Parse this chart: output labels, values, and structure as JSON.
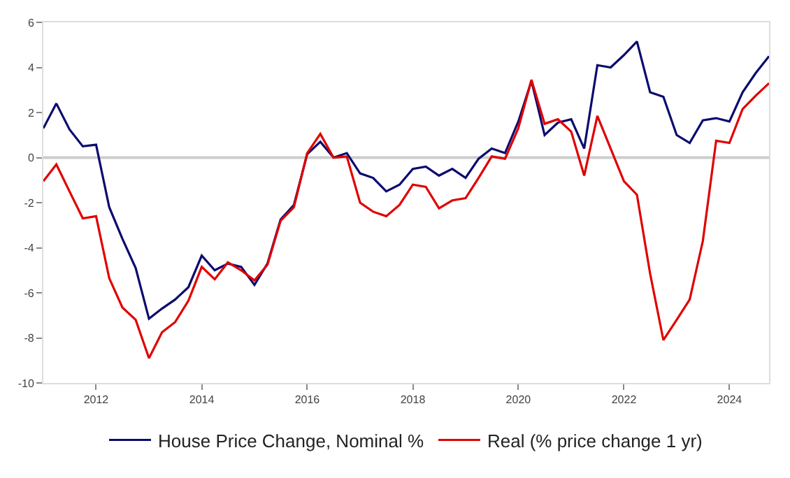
{
  "chart_data": {
    "type": "line",
    "x": [
      "2011-01",
      "2011-04",
      "2011-07",
      "2011-10",
      "2012-01",
      "2012-04",
      "2012-07",
      "2012-10",
      "2013-01",
      "2013-04",
      "2013-07",
      "2013-10",
      "2014-01",
      "2014-04",
      "2014-07",
      "2014-10",
      "2015-01",
      "2015-04",
      "2015-07",
      "2015-10",
      "2016-01",
      "2016-04",
      "2016-07",
      "2016-10",
      "2017-01",
      "2017-04",
      "2017-07",
      "2017-10",
      "2018-01",
      "2018-04",
      "2018-07",
      "2018-10",
      "2019-01",
      "2019-04",
      "2019-07",
      "2019-10",
      "2020-01",
      "2020-04",
      "2020-07",
      "2020-10",
      "2021-01",
      "2021-04",
      "2021-07",
      "2021-10",
      "2022-01",
      "2022-04",
      "2022-07",
      "2022-10",
      "2023-01",
      "2023-04",
      "2023-07",
      "2023-10",
      "2024-01",
      "2024-04",
      "2024-07",
      "2024-10"
    ],
    "series": [
      {
        "name": "House Price Change, Nominal %",
        "color": "#0b0b6e",
        "values": [
          1.3,
          2.4,
          1.25,
          0.5,
          0.57,
          -2.2,
          -3.6,
          -4.9,
          -7.15,
          -6.7,
          -6.3,
          -5.75,
          -4.35,
          -5.0,
          -4.7,
          -4.85,
          -5.65,
          -4.7,
          -2.75,
          -2.1,
          0.15,
          0.7,
          0.0,
          0.2,
          -0.7,
          -0.9,
          -1.5,
          -1.2,
          -0.5,
          -0.4,
          -0.8,
          -0.5,
          -0.9,
          -0.05,
          0.4,
          0.2,
          1.6,
          3.4,
          1.0,
          1.55,
          1.7,
          0.4,
          4.1,
          4.0,
          4.55,
          5.15,
          2.9,
          2.7,
          1.0,
          0.65,
          1.65,
          1.75,
          1.6,
          2.9,
          3.75,
          4.5
        ]
      },
      {
        "name": "Real (% price change 1 yr)",
        "color": "#e00000",
        "values": [
          -1.05,
          -0.3,
          -1.5,
          -2.7,
          -2.6,
          -5.35,
          -6.65,
          -7.2,
          -8.9,
          -7.75,
          -7.3,
          -6.35,
          -4.85,
          -5.4,
          -4.65,
          -5.0,
          -5.45,
          -4.75,
          -2.8,
          -2.2,
          0.2,
          1.05,
          0.0,
          0.05,
          -2.0,
          -2.4,
          -2.6,
          -2.1,
          -1.2,
          -1.3,
          -2.25,
          -1.9,
          -1.8,
          -0.9,
          0.05,
          -0.05,
          1.3,
          3.45,
          1.5,
          1.7,
          1.15,
          -0.8,
          1.85,
          0.4,
          -1.05,
          -1.65,
          -5.15,
          -8.1,
          -7.2,
          -6.3,
          -3.7,
          0.75,
          0.65,
          2.15,
          2.75,
          3.3
        ]
      }
    ],
    "xlim": [
      "2011-01",
      "2024-10"
    ],
    "xticks": [
      {
        "value": "2012-01",
        "label": "2012"
      },
      {
        "value": "2014-01",
        "label": "2014"
      },
      {
        "value": "2016-01",
        "label": "2016"
      },
      {
        "value": "2018-01",
        "label": "2018"
      },
      {
        "value": "2020-01",
        "label": "2020"
      },
      {
        "value": "2022-01",
        "label": "2022"
      },
      {
        "value": "2024-01",
        "label": "2024"
      }
    ],
    "ylim": [
      -10,
      6
    ],
    "yticks": [
      -10,
      -8,
      -6,
      -4,
      -2,
      0,
      2,
      4,
      6
    ],
    "ref_lines": [
      {
        "axis": "y",
        "value": 0,
        "color": "#cccccc"
      }
    ],
    "grid": false,
    "legend": "bottom",
    "marker": "none",
    "line_style": "solid"
  }
}
